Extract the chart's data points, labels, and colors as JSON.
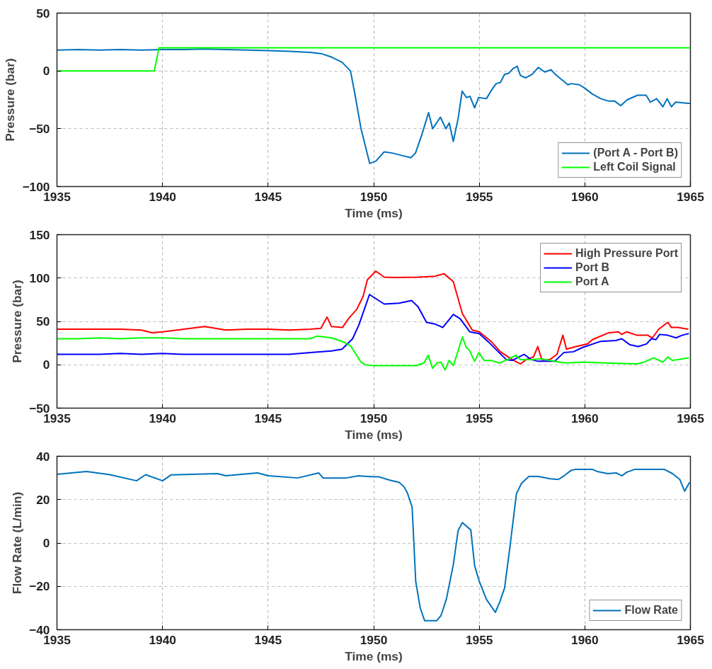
{
  "chart_data": [
    {
      "type": "line",
      "xlabel": "Time (ms)",
      "ylabel": "Pressure (bar)",
      "xlim": [
        1935,
        1965
      ],
      "xticks": [
        1935,
        1940,
        1945,
        1950,
        1955,
        1960,
        1965
      ],
      "ylim": [
        -100,
        50
      ],
      "yticks": [
        -100,
        -50,
        0,
        50
      ],
      "grid": true,
      "legend": "bottom right",
      "line_style": "solid",
      "marker": "none",
      "series": [
        {
          "name": "(Port A - Port B)",
          "color": "#0072bd",
          "x": [
            1935,
            1936,
            1937,
            1938,
            1939,
            1940,
            1941,
            1942,
            1943,
            1944,
            1945,
            1946,
            1947,
            1947.5,
            1948,
            1948.5,
            1948.9,
            1949.1,
            1949.4,
            1949.81,
            1950.1,
            1950.5,
            1950.87,
            1951.3,
            1951.76,
            1951.98,
            1952.3,
            1952.6,
            1952.79,
            1953.16,
            1953.42,
            1953.58,
            1953.77,
            1954.0,
            1954.19,
            1954.39,
            1954.56,
            1954.78,
            1954.97,
            1955.34,
            1955.6,
            1955.8,
            1956.0,
            1956.2,
            1956.4,
            1956.6,
            1956.8,
            1956.95,
            1957.2,
            1957.5,
            1957.8,
            1958.1,
            1958.4,
            1958.6,
            1959.2,
            1959.35,
            1959.74,
            1960.0,
            1960.36,
            1960.75,
            1961.1,
            1961.4,
            1961.7,
            1962.0,
            1962.5,
            1962.9,
            1963.1,
            1963.4,
            1963.7,
            1963.9,
            1964.1,
            1964.3,
            1964.9,
            1965
          ],
          "values": [
            18,
            18.5,
            18,
            18.5,
            18,
            18.5,
            18.5,
            19,
            18.5,
            18,
            17.5,
            17,
            16,
            15,
            12,
            7.5,
            0,
            -19,
            -50,
            -80,
            -78,
            -70,
            -71,
            -73,
            -75,
            -71,
            -54,
            -36,
            -50,
            -40,
            -50,
            -45,
            -61,
            -41,
            -17.5,
            -23,
            -22,
            -32,
            -23,
            -24,
            -16,
            -11,
            -10,
            -3,
            -2,
            2,
            4,
            -4,
            -6,
            -3,
            3,
            -1,
            1,
            -3,
            -12,
            -11,
            -12,
            -15,
            -20,
            -24,
            -26,
            -26,
            -30,
            -25,
            -21,
            -21,
            -27,
            -24,
            -31,
            -24,
            -31,
            -27,
            -28,
            -28
          ]
        },
        {
          "name": "Left Coil Signal",
          "color": "#00ff00",
          "x": [
            1935,
            1939.61,
            1939.83,
            1965
          ],
          "values": [
            0,
            0,
            20,
            20
          ]
        }
      ]
    },
    {
      "type": "line",
      "xlabel": "Time (ms)",
      "ylabel": "Pressure (bar)",
      "xlim": [
        1935,
        1965
      ],
      "xticks": [
        1935,
        1940,
        1945,
        1950,
        1955,
        1960,
        1965
      ],
      "ylim": [
        -50,
        150
      ],
      "yticks": [
        -50,
        0,
        50,
        100,
        150
      ],
      "grid": true,
      "legend": "top right",
      "line_style": "solid",
      "marker": "none",
      "series": [
        {
          "name": "High Pressure Port",
          "color": "#ff0000",
          "x": [
            1935,
            1936,
            1937,
            1938,
            1939,
            1939.5,
            1940,
            1941,
            1942,
            1943,
            1944,
            1945,
            1946,
            1947,
            1947.5,
            1947.79,
            1948,
            1948.52,
            1948.8,
            1949.2,
            1949.5,
            1949.7,
            1950.1,
            1950.5,
            1950.98,
            1952.1,
            1952.9,
            1953.33,
            1953.77,
            1954.2,
            1954.67,
            1955.0,
            1955.56,
            1956.0,
            1956.56,
            1956.95,
            1957.23,
            1957.57,
            1957.77,
            1957.96,
            1958.35,
            1958.68,
            1958.96,
            1959.13,
            1959.58,
            1960.13,
            1960.36,
            1961.14,
            1961.59,
            1961.75,
            1961.98,
            1962.48,
            1962.98,
            1963.2,
            1963.5,
            1963.93,
            1964.1,
            1964.4,
            1964.9
          ],
          "values": [
            41,
            41,
            41,
            41,
            40,
            37,
            38,
            41,
            44,
            40,
            41,
            41,
            40,
            41,
            42,
            55,
            44,
            43,
            53,
            64,
            79,
            98,
            108,
            101,
            100.6,
            101,
            102,
            105,
            96,
            59,
            40,
            38,
            27,
            15,
            6,
            1,
            6,
            9,
            21,
            6,
            6,
            12,
            34,
            18,
            21,
            24,
            29,
            37,
            38,
            35,
            38,
            34,
            34,
            31,
            41,
            49,
            43,
            43,
            41
          ]
        },
        {
          "name": "Port B",
          "color": "#0000ff",
          "x": [
            1935,
            1936,
            1937,
            1938,
            1939,
            1940,
            1941,
            1942,
            1943,
            1944,
            1945,
            1946,
            1947,
            1948,
            1948.5,
            1949,
            1949.3,
            1949.8,
            1950.5,
            1951.2,
            1951.8,
            1952.1,
            1952.5,
            1952.9,
            1953.27,
            1953.77,
            1954.1,
            1954.55,
            1955.0,
            1955.45,
            1955.9,
            1956.28,
            1956.56,
            1957.12,
            1957.45,
            1957.79,
            1958.57,
            1959.0,
            1959.46,
            1959.9,
            1960.75,
            1961.47,
            1961.75,
            1962.14,
            1962.53,
            1962.92,
            1963.15,
            1963.37,
            1963.54,
            1963.93,
            1964.32,
            1964.6,
            1964.93
          ],
          "values": [
            12,
            12,
            12,
            13,
            12,
            13,
            12,
            12,
            12,
            12,
            12,
            12,
            14,
            16,
            18,
            30,
            46,
            81,
            70,
            71,
            74,
            67,
            49,
            47,
            43,
            58,
            53,
            38,
            36,
            26,
            15,
            6,
            5,
            12,
            6,
            4,
            4,
            14,
            15,
            20,
            27,
            28,
            30,
            23,
            21,
            24,
            30,
            29,
            35,
            34,
            31,
            34,
            36
          ]
        },
        {
          "name": "Port A",
          "color": "#00ff00",
          "x": [
            1935,
            1936,
            1937,
            1938,
            1939,
            1940,
            1941,
            1942,
            1943,
            1944,
            1945,
            1946,
            1947,
            1947.3,
            1948,
            1948.5,
            1948.9,
            1949.4,
            1949.6,
            1950,
            1951.99,
            1952.38,
            1952.58,
            1952.79,
            1952.99,
            1953.18,
            1953.38,
            1953.57,
            1953.77,
            1953.97,
            1954.2,
            1954.39,
            1954.55,
            1954.78,
            1954.98,
            1955.23,
            1955.56,
            1955.95,
            1956.34,
            1956.73,
            1956.95,
            1957.45,
            1957.9,
            1958.79,
            1959.13,
            1959.9,
            1961.0,
            1962.48,
            1962.8,
            1963.26,
            1963.7,
            1963.93,
            1964.15,
            1964.93
          ],
          "values": [
            30,
            30,
            31,
            30,
            31,
            31,
            30,
            30,
            30,
            30,
            30,
            30,
            30,
            33,
            31,
            27,
            22,
            3,
            0,
            -1,
            -1,
            2,
            11,
            -4,
            2,
            3,
            -6,
            5,
            -1,
            14,
            32,
            20,
            16,
            4,
            14,
            5,
            5,
            2,
            6,
            11,
            6,
            6,
            7,
            3,
            2,
            3,
            2,
            1,
            3,
            8,
            3,
            9,
            5,
            8
          ]
        }
      ]
    },
    {
      "type": "line",
      "xlabel": "Time (ms)",
      "ylabel": "Flow Rate (L/min)",
      "xlim": [
        1935,
        1965
      ],
      "xticks": [
        1935,
        1940,
        1945,
        1950,
        1955,
        1960,
        1965
      ],
      "ylim": [
        -40,
        40
      ],
      "yticks": [
        -40,
        -20,
        0,
        20,
        40
      ],
      "grid": true,
      "legend": "bottom right",
      "line_style": "solid",
      "marker": "none",
      "series": [
        {
          "name": "Flow Rate",
          "color": "#0072bd",
          "x": [
            1935,
            1936.4,
            1937.5,
            1938.77,
            1939.2,
            1940.0,
            1940.4,
            1942.6,
            1943.0,
            1944.5,
            1945.0,
            1946.4,
            1947.4,
            1947.6,
            1948.7,
            1949.3,
            1949.98,
            1950.26,
            1950.76,
            1951.2,
            1951.43,
            1951.6,
            1951.82,
            1951.99,
            1952.2,
            1952.41,
            1952.99,
            1953.19,
            1953.44,
            1953.77,
            1954.0,
            1954.2,
            1954.6,
            1954.78,
            1955.0,
            1955.34,
            1955.76,
            1955.98,
            1956.2,
            1956.45,
            1956.76,
            1957.0,
            1957.35,
            1957.8,
            1958.35,
            1958.74,
            1959.02,
            1959.35,
            1959.57,
            1960.35,
            1960.58,
            1961.08,
            1961.5,
            1961.75,
            1961.98,
            1962.37,
            1963.76,
            1964.15,
            1964.5,
            1964.73,
            1964.96
          ],
          "values": [
            31.7,
            33,
            31.5,
            28.7,
            31.5,
            28.7,
            31.4,
            32,
            31,
            32.3,
            31,
            30,
            32.3,
            30,
            30,
            31,
            30.5,
            30.5,
            29,
            28,
            26,
            23,
            16.6,
            -17.7,
            -29.8,
            -35.8,
            -35.8,
            -33.4,
            -26,
            -10,
            5.8,
            9.4,
            6,
            -10.5,
            -17.7,
            -26,
            -32,
            -27,
            -20.7,
            -2,
            22.7,
            27.5,
            30.7,
            30.7,
            29.6,
            29.3,
            31,
            33.5,
            34,
            34,
            33,
            32,
            32.3,
            31,
            32.6,
            34,
            34,
            32,
            29.3,
            23.9,
            28
          ]
        }
      ]
    }
  ]
}
